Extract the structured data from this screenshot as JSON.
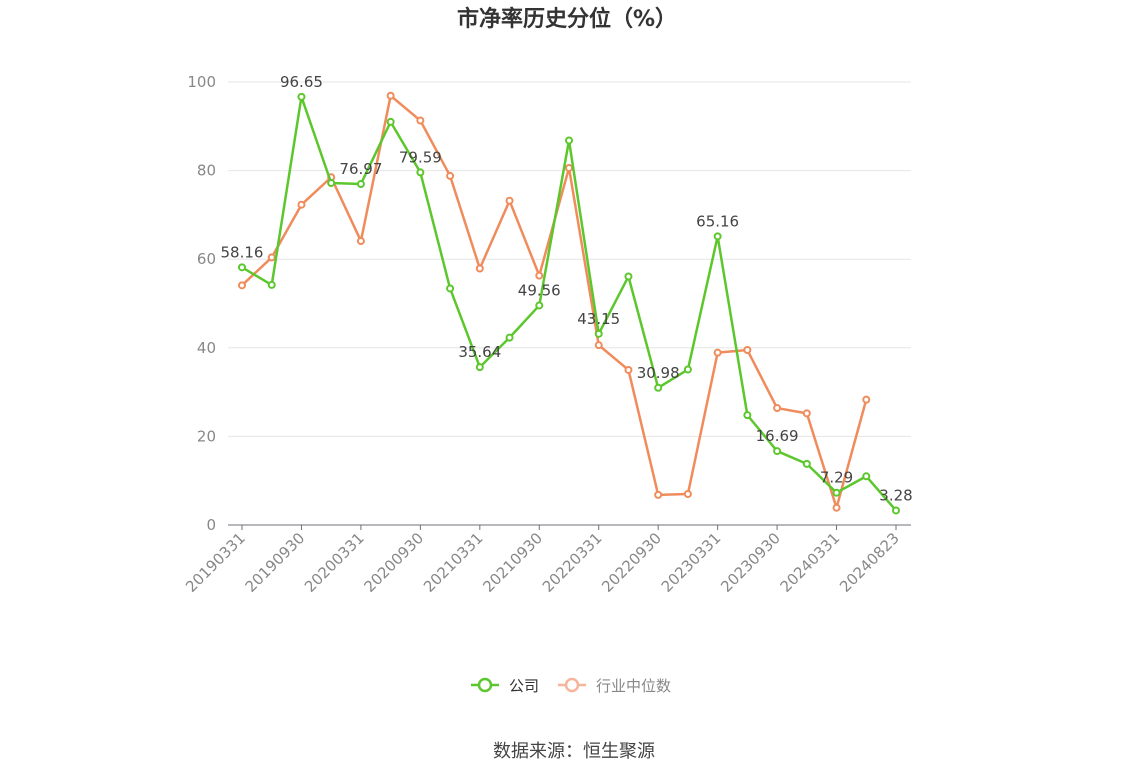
{
  "chart_data": {
    "type": "line",
    "title": "市净率历史分位（%）",
    "source": "数据来源：恒生聚源",
    "ylim": [
      0,
      100
    ],
    "yticks": [
      0,
      20,
      40,
      60,
      80,
      100
    ],
    "x": [
      "20190331",
      "20190630",
      "20190930",
      "20191231",
      "20200331",
      "20200630",
      "20200930",
      "20201231",
      "20210331",
      "20210630",
      "20210930",
      "20211231",
      "20220331",
      "20220630",
      "20220930",
      "20221231",
      "20230331",
      "20230630",
      "20230930",
      "20231231",
      "20240331",
      "20240630",
      "20240823"
    ],
    "xtick_labels": [
      "20190331",
      "20190930",
      "20200331",
      "20200930",
      "20210331",
      "20210930",
      "20220331",
      "20220930",
      "20230331",
      "20230930",
      "20240331",
      "20240823"
    ],
    "legend_position": "bottom",
    "series": [
      {
        "name": "公司",
        "color": "#5cc72d",
        "values": [
          58.16,
          54.2,
          96.65,
          77.2,
          76.97,
          91.0,
          79.59,
          53.4,
          35.64,
          42.3,
          49.56,
          86.8,
          43.15,
          56.1,
          30.98,
          35.1,
          65.16,
          24.8,
          16.69,
          13.8,
          7.29,
          11.0,
          3.28
        ],
        "labels": [
          "58.16",
          null,
          "96.65",
          null,
          "76.97",
          null,
          "79.59",
          null,
          "35.64",
          null,
          "49.56",
          null,
          "43.15",
          null,
          "30.98",
          null,
          "65.16",
          null,
          "16.69",
          null,
          "7.29",
          null,
          "3.28"
        ]
      },
      {
        "name": "行业中位数",
        "color": "#f08b5c",
        "values": [
          54.1,
          60.4,
          72.3,
          78.5,
          64.1,
          96.9,
          91.3,
          78.8,
          57.9,
          73.2,
          56.3,
          80.6,
          40.6,
          35.0,
          6.8,
          7.0,
          38.9,
          39.5,
          26.4,
          25.2,
          3.9,
          28.3,
          null
        ]
      }
    ]
  }
}
